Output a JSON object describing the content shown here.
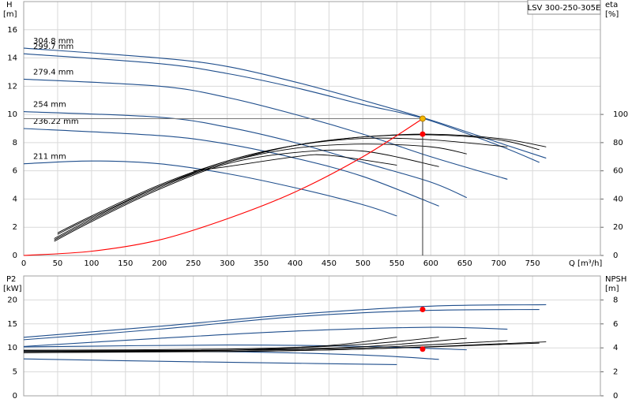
{
  "chart_data": [
    {
      "type": "line",
      "title": "LSV 300-250-305E",
      "ylabel": [
        "H",
        "[m]"
      ],
      "y2label": [
        "eta",
        "[%]"
      ],
      "xlabel": "Q [m³/h]",
      "xlim": [
        0,
        850
      ],
      "xticks": [
        0,
        50,
        100,
        150,
        200,
        250,
        300,
        350,
        400,
        450,
        500,
        550,
        600,
        650,
        700,
        750
      ],
      "ylim": [
        0,
        18
      ],
      "yticks": [
        0,
        2,
        4,
        6,
        8,
        10,
        12,
        14,
        16
      ],
      "y2lim": [
        0,
        180
      ],
      "y2ticks": [
        0,
        20,
        40,
        60,
        80,
        100
      ],
      "grid": true,
      "series": [
        {
          "name": "304.8 mm",
          "color": "#1f4e8c",
          "axis": "y",
          "x": [
            0,
            200,
            300,
            400,
            500,
            600,
            700,
            770
          ],
          "values": [
            14.7,
            14.0,
            13.4,
            12.3,
            11.0,
            9.6,
            8.0,
            6.9
          ]
        },
        {
          "name": "299.7 mm",
          "color": "#1f4e8c",
          "axis": "y",
          "x": [
            0,
            200,
            300,
            400,
            500,
            590,
            700,
            760
          ],
          "values": [
            14.3,
            13.6,
            12.9,
            11.9,
            10.7,
            9.7,
            7.8,
            6.6
          ]
        },
        {
          "name": "279.4 mm",
          "color": "#1f4e8c",
          "axis": "y",
          "x": [
            0,
            200,
            300,
            400,
            500,
            600,
            713
          ],
          "values": [
            12.5,
            12.0,
            11.2,
            10.0,
            8.6,
            7.0,
            5.4
          ]
        },
        {
          "name": "254 mm",
          "color": "#1f4e8c",
          "axis": "y",
          "x": [
            0,
            200,
            300,
            400,
            500,
            600,
            653
          ],
          "values": [
            10.2,
            9.8,
            9.1,
            8.0,
            6.6,
            5.2,
            4.1
          ]
        },
        {
          "name": "236.22 mm",
          "color": "#1f4e8c",
          "axis": "y",
          "x": [
            0,
            200,
            300,
            400,
            500,
            612
          ],
          "values": [
            9.0,
            8.5,
            7.9,
            6.9,
            5.6,
            3.5
          ]
        },
        {
          "name": "211 mm",
          "color": "#1f4e8c",
          "axis": "y",
          "x": [
            0,
            100,
            200,
            300,
            400,
            500,
            550
          ],
          "values": [
            6.5,
            6.7,
            6.5,
            5.8,
            4.8,
            3.6,
            2.8
          ]
        },
        {
          "color": "#000000",
          "axis": "y2",
          "x": [
            50,
            100,
            200,
            300,
            400,
            500,
            600,
            700,
            770
          ],
          "values": [
            16,
            28,
            50,
            67,
            78,
            84,
            86,
            83,
            77
          ]
        },
        {
          "color": "#000000",
          "axis": "y2",
          "x": [
            50,
            100,
            200,
            300,
            400,
            500,
            600,
            700,
            760
          ],
          "values": [
            15,
            27,
            49,
            66,
            78,
            84,
            85.5,
            82,
            75
          ]
        },
        {
          "color": "#000000",
          "axis": "y2",
          "x": [
            45,
            100,
            200,
            300,
            400,
            500,
            600,
            713
          ],
          "values": [
            12,
            26,
            49,
            67,
            78,
            83,
            82,
            77
          ]
        },
        {
          "color": "#000000",
          "axis": "y2",
          "x": [
            45,
            100,
            200,
            300,
            400,
            500,
            600,
            653
          ],
          "values": [
            11,
            25,
            48,
            66,
            76,
            79,
            77,
            72
          ]
        },
        {
          "color": "#000000",
          "axis": "y2",
          "x": [
            45,
            100,
            200,
            300,
            400,
            500,
            612
          ],
          "values": [
            10,
            24,
            47,
            65,
            73,
            74,
            63
          ]
        },
        {
          "color": "#000000",
          "axis": "y2",
          "x": [
            250,
            300,
            400,
            450,
            550
          ],
          "values": [
            60,
            63,
            70,
            71,
            64
          ]
        },
        {
          "color": "#ff0000",
          "axis": "y",
          "x": [
            0,
            100,
            200,
            300,
            400,
            500,
            588
          ],
          "values": [
            0,
            0.3,
            1.1,
            2.6,
            4.5,
            7.0,
            9.7
          ]
        }
      ],
      "points": [
        {
          "x": 588,
          "y": 9.7,
          "axis": "y",
          "color": "#f5b800"
        },
        {
          "x": 588,
          "y": 86,
          "axis": "y2",
          "color": "#ff0000"
        }
      ]
    },
    {
      "type": "line",
      "ylabel": [
        "P2",
        "[kW]"
      ],
      "y2label": [
        "NPSH",
        "[m]"
      ],
      "xlim": [
        0,
        850
      ],
      "xticks": [
        0,
        50,
        100,
        150,
        200,
        250,
        300,
        350,
        400,
        450,
        500,
        550,
        600,
        650,
        700,
        750
      ],
      "ylim": [
        0,
        25
      ],
      "yticks": [
        0,
        5,
        10,
        15,
        20
      ],
      "y2lim": [
        0,
        10
      ],
      "y2ticks": [
        0,
        2,
        4,
        6,
        8
      ],
      "grid": true,
      "series": [
        {
          "color": "#1f4e8c",
          "axis": "y",
          "x": [
            0,
            200,
            400,
            600,
            770
          ],
          "values": [
            12.2,
            14.5,
            17.0,
            18.7,
            19.0
          ]
        },
        {
          "color": "#1f4e8c",
          "axis": "y",
          "x": [
            0,
            200,
            400,
            590,
            760
          ],
          "values": [
            11.7,
            13.9,
            16.5,
            17.8,
            18.0
          ]
        },
        {
          "color": "#1f4e8c",
          "axis": "y",
          "x": [
            0,
            200,
            400,
            600,
            713
          ],
          "values": [
            10.3,
            12.0,
            13.5,
            14.3,
            13.9
          ]
        },
        {
          "color": "#1f4e8c",
          "axis": "y",
          "x": [
            0,
            300,
            500,
            653
          ],
          "values": [
            10.2,
            10.6,
            10.3,
            9.6
          ]
        },
        {
          "color": "#1f4e8c",
          "axis": "y",
          "x": [
            0,
            300,
            500,
            612
          ],
          "values": [
            9.3,
            9.2,
            8.5,
            7.6
          ]
        },
        {
          "color": "#1f4e8c",
          "axis": "y",
          "x": [
            0,
            200,
            400,
            550
          ],
          "values": [
            7.7,
            7.2,
            6.8,
            6.5
          ]
        },
        {
          "color": "#000000",
          "axis": "y2",
          "x": [
            0,
            300,
            500,
            770
          ],
          "values": [
            3.6,
            3.7,
            3.9,
            4.5
          ]
        },
        {
          "color": "#000000",
          "axis": "y2",
          "x": [
            0,
            300,
            500,
            760
          ],
          "values": [
            3.7,
            3.7,
            3.9,
            4.4
          ]
        },
        {
          "color": "#000000",
          "axis": "y2",
          "x": [
            0,
            300,
            500,
            713
          ],
          "values": [
            3.8,
            3.8,
            4.0,
            4.6
          ]
        },
        {
          "color": "#000000",
          "axis": "y2",
          "x": [
            0,
            300,
            500,
            653
          ],
          "values": [
            3.7,
            3.8,
            4.1,
            4.8
          ]
        },
        {
          "color": "#000000",
          "axis": "y2",
          "x": [
            0,
            300,
            500,
            612
          ],
          "values": [
            3.6,
            3.8,
            4.3,
            4.9
          ]
        },
        {
          "color": "#000000",
          "axis": "y2",
          "x": [
            0,
            300,
            450,
            550
          ],
          "values": [
            3.8,
            3.9,
            4.2,
            4.9
          ]
        }
      ],
      "points": [
        {
          "x": 588,
          "y": 18.0,
          "axis": "y",
          "color": "#ff0000"
        },
        {
          "x": 588,
          "y": 3.9,
          "axis": "y2",
          "color": "#ff0000"
        }
      ]
    }
  ]
}
